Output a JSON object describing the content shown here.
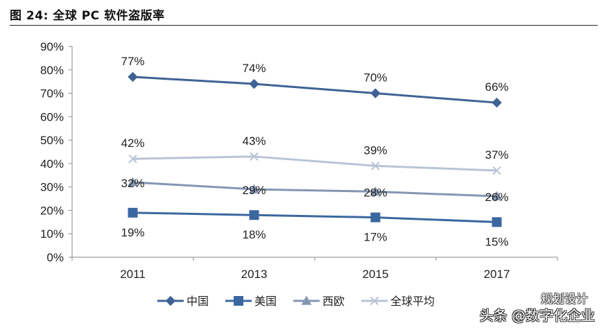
{
  "figure_label": "图 24:  全球 PC 软件盗版率",
  "watermark": {
    "top": "规划设计",
    "bottom": "头条 @数字化企业"
  },
  "colors": {
    "china": "#3f6294",
    "usa": "#3b67a0",
    "west_europe": "#8496b3",
    "global": "#bac4d6",
    "axis": "#888888"
  },
  "chart_data": {
    "type": "line",
    "title": "",
    "xlabel": "",
    "ylabel": "",
    "categories": [
      "2011",
      "2013",
      "2015",
      "2017"
    ],
    "ylim": [
      0,
      90
    ],
    "yticks": [
      "0%",
      "10%",
      "20%",
      "30%",
      "40%",
      "50%",
      "60%",
      "70%",
      "80%",
      "90%"
    ],
    "grid": false,
    "legend_position": "bottom",
    "series": [
      {
        "name": "中国",
        "values": [
          77,
          74,
          70,
          66
        ],
        "labels": [
          "77%",
          "74%",
          "70%",
          "66%"
        ],
        "marker": "diamond",
        "label_pos": "above"
      },
      {
        "name": "美国",
        "values": [
          19,
          18,
          17,
          15
        ],
        "labels": [
          "19%",
          "18%",
          "17%",
          "15%"
        ],
        "marker": "square",
        "label_pos": "below"
      },
      {
        "name": "西欧",
        "values": [
          32,
          29,
          28,
          26
        ],
        "labels": [
          "32%",
          "29%",
          "28%",
          "26%"
        ],
        "marker": "triangle",
        "label_pos": "center"
      },
      {
        "name": "全球平均",
        "values": [
          42,
          43,
          39,
          37
        ],
        "labels": [
          "42%",
          "43%",
          "39%",
          "37%"
        ],
        "marker": "x",
        "label_pos": "above"
      }
    ]
  }
}
